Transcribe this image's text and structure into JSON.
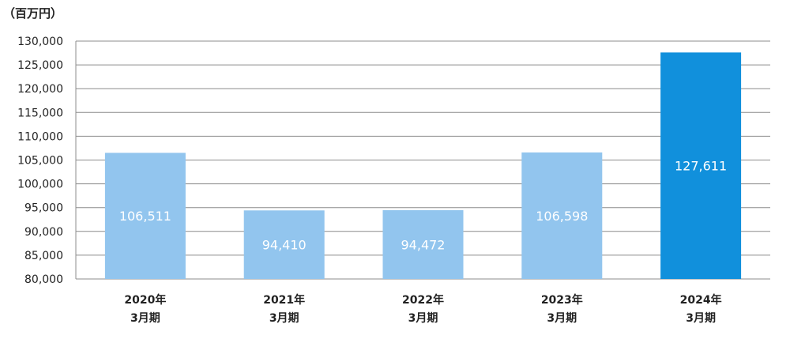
{
  "chart_data": {
    "type": "bar",
    "unit_label": "（百万円）",
    "categories": [
      [
        "2020年",
        "3月期"
      ],
      [
        "2021年",
        "3月期"
      ],
      [
        "2022年",
        "3月期"
      ],
      [
        "2023年",
        "3月期"
      ],
      [
        "2024年",
        "3月期"
      ]
    ],
    "values": [
      106511,
      94410,
      94472,
      106598,
      127611
    ],
    "value_labels": [
      "106,511",
      "94,410",
      "94,472",
      "106,598",
      "127,611"
    ],
    "ylim": [
      80000,
      130000
    ],
    "yticks": [
      80000,
      85000,
      90000,
      95000,
      100000,
      105000,
      110000,
      115000,
      120000,
      125000,
      130000
    ],
    "ytick_labels": [
      "80,000",
      "85,000",
      "90,000",
      "95,000",
      "100,000",
      "105,000",
      "110,000",
      "115,000",
      "120,000",
      "125,000",
      "130,000"
    ],
    "grid": true,
    "legend": "none",
    "colors": {
      "bar": "#92C5EE",
      "highlight_bar": "#1190DC",
      "grid": "#8C8C8C",
      "label": "#FFFFFF"
    },
    "highlight_index": 4
  }
}
